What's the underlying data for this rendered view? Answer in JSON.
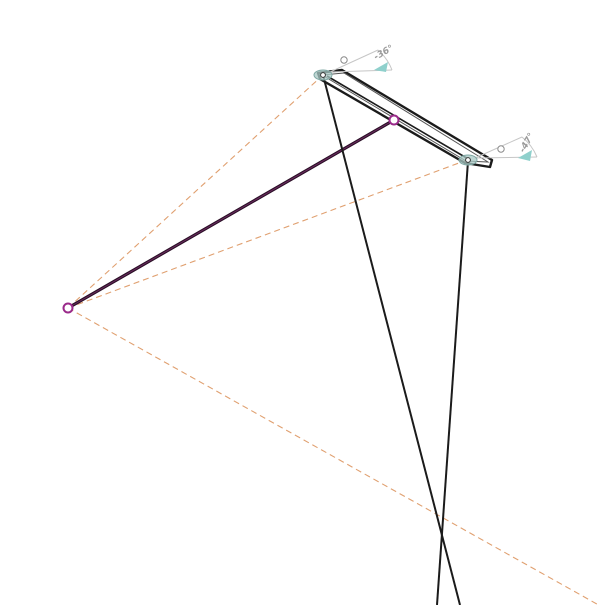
{
  "canvas": {
    "background": "#ffffff"
  },
  "colors": {
    "rigid_member": "#1b1b1b",
    "coupler_link": "#2a1026",
    "construction_line": "#e0a070",
    "pivot_ring": "#9a2a8a",
    "joint_marker": "#a8c8c4",
    "angle_arc": "#c6c6c6",
    "angle_pointer": "#8fd0cc",
    "angle_label": "#9a9a9a"
  },
  "labels": {
    "joint_a_angle": "-36°",
    "joint_b_angle": "-47°"
  },
  "icons": {
    "fixed_pivot": "ring-marker",
    "moving_pivot": "ring-marker",
    "joint_a": "ellipse-joint-marker",
    "joint_b": "ellipse-joint-marker",
    "angle_indicator": "triangle-pointer"
  }
}
